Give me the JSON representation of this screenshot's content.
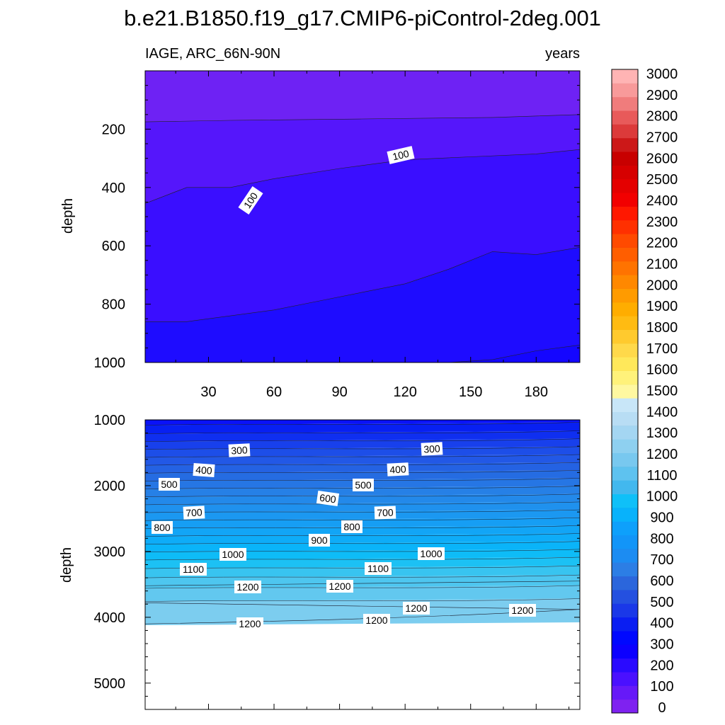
{
  "chart_data": {
    "type": "contour",
    "title": "b.e21.B1850.f19_g17.CMIP6-piControl-2deg.001",
    "variable_label": "IAGE, ARC_66N-90N",
    "units_label": "years",
    "xlabel": "",
    "ylabel": "depth",
    "panels": [
      {
        "name": "upper",
        "xlim": [
          1,
          200
        ],
        "ylim": [
          1000,
          0
        ],
        "x_ticks": [
          30,
          60,
          90,
          120,
          150,
          180
        ],
        "y_ticks": [
          200,
          400,
          600,
          800,
          1000
        ],
        "contour_labels": [
          "100",
          "100"
        ],
        "bands": [
          {
            "level": 0,
            "boundary": [
              [
                1,
                175
              ],
              [
                40,
                170
              ],
              [
                100,
                165
              ],
              [
                160,
                160
              ],
              [
                200,
                150
              ]
            ]
          },
          {
            "level": 50,
            "boundary": [
              [
                1,
                455
              ],
              [
                20,
                400
              ],
              [
                40,
                400
              ],
              [
                60,
                370
              ],
              [
                90,
                335
              ],
              [
                120,
                305
              ],
              [
                150,
                295
              ],
              [
                180,
                285
              ],
              [
                200,
                270
              ]
            ]
          },
          {
            "level": 100,
            "boundary": [
              [
                1,
                860
              ],
              [
                20,
                860
              ],
              [
                40,
                840
              ],
              [
                60,
                820
              ],
              [
                80,
                790
              ],
              [
                100,
                760
              ],
              [
                120,
                730
              ],
              [
                140,
                680
              ],
              [
                160,
                620
              ],
              [
                180,
                630
              ],
              [
                200,
                605
              ]
            ]
          },
          {
            "level": 150,
            "boundary": [
              [
                1,
                1000
              ],
              [
                140,
                1000
              ],
              [
                160,
                990
              ],
              [
                180,
                960
              ],
              [
                200,
                940
              ]
            ]
          }
        ]
      },
      {
        "name": "lower",
        "xlim": [
          1,
          200
        ],
        "ylim": [
          5400,
          1000
        ],
        "y_ticks": [
          1000,
          2000,
          3000,
          4000,
          5000
        ],
        "ocean_bottom": 4120,
        "contour_labels": [
          "300",
          "300",
          "400",
          "400",
          "500",
          "500",
          "600",
          "700",
          "700",
          "800",
          "800",
          "900",
          "1000",
          "1000",
          "1100",
          "1100",
          "1200",
          "1200",
          "1200",
          "1200",
          "1200",
          "1200"
        ]
      }
    ],
    "colorbar": {
      "levels": [
        "0",
        "100",
        "200",
        "300",
        "400",
        "500",
        "600",
        "700",
        "800",
        "900",
        "1000",
        "1100",
        "1200",
        "1300",
        "1400",
        "1500",
        "1600",
        "1700",
        "1800",
        "1900",
        "2000",
        "2100",
        "2200",
        "2300",
        "2400",
        "2500",
        "2600",
        "2700",
        "2800",
        "2900",
        "3000"
      ],
      "colors": [
        "#7f22f0",
        "#6619f8",
        "#4a10ff",
        "#2a0aff",
        "#0c00ff",
        "#0008ff",
        "#0a1ef2",
        "#1a38e8",
        "#2450e0",
        "#2b66dc",
        "#2c7ee5",
        "#1c8cf2",
        "#1295f8",
        "#0ea0fb",
        "#08b2fb",
        "#0fc0f8",
        "#42b8ee",
        "#5ec2ef",
        "#78c8ef",
        "#8ed0f0",
        "#a4d6f2",
        "#b8ddf4",
        "#c8e6f8",
        "#fff8a0",
        "#fff27a",
        "#ffe85a",
        "#ffd94a",
        "#ffca2e",
        "#ffbb12",
        "#ffad00",
        "#ff9b00",
        "#ff8800",
        "#ff7300",
        "#ff5e00",
        "#ff4a00",
        "#ff3000",
        "#ff1800",
        "#f20000",
        "#e40000",
        "#d60000",
        "#c80000",
        "#cc1818",
        "#dc3a3a",
        "#e85a5a",
        "#f07c7c",
        "#f89a9a",
        "#ffb4b4"
      ]
    }
  }
}
